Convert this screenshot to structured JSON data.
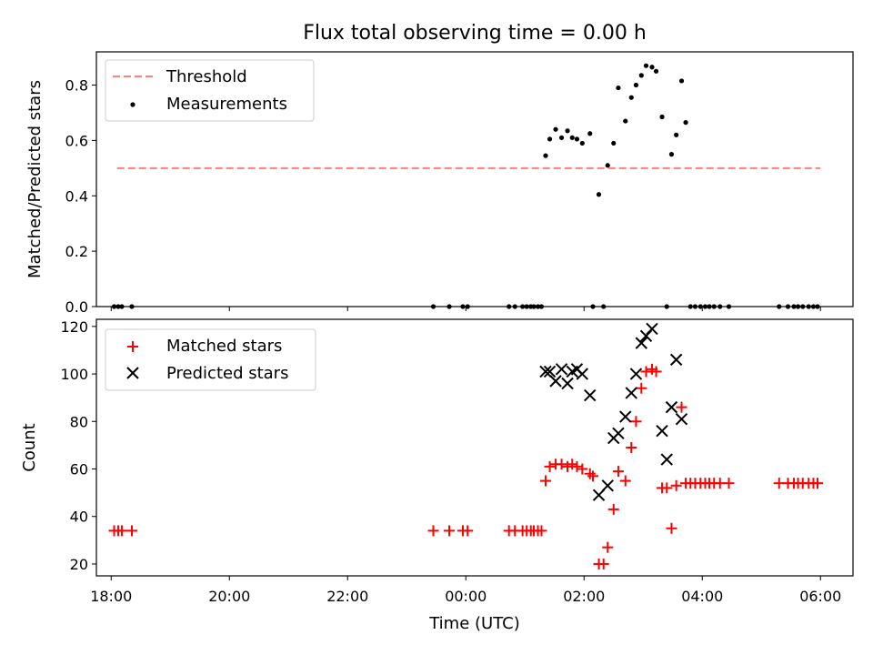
{
  "chart_data": [
    {
      "type": "scatter",
      "title": "Flux total observing time = 0.00 h",
      "xlabel": "",
      "ylabel": "Matched/Predicted stars",
      "xlim_hours": [
        -6.25,
        6.55
      ],
      "ylim": [
        0,
        0.92
      ],
      "yticks": [
        0.0,
        0.2,
        0.4,
        0.6,
        0.8
      ],
      "grid": false,
      "legend_position": "upper-left",
      "series": [
        {
          "name": "Threshold",
          "kind": "line",
          "style": "dashed",
          "color": "#ff7f7f",
          "x_hours": [
            -5.9,
            6.0
          ],
          "values": [
            0.5,
            0.5
          ]
        },
        {
          "name": "Measurements",
          "kind": "scatter",
          "marker": "dot",
          "color": "#000000",
          "x_hours": [
            -5.95,
            -5.88,
            -5.82,
            -5.65,
            -0.55,
            -0.28,
            -0.05,
            0.03,
            0.73,
            0.83,
            0.96,
            1.03,
            1.1,
            1.15,
            1.22,
            1.28,
            1.35,
            1.42,
            1.52,
            1.62,
            1.72,
            1.8,
            1.88,
            1.97,
            2.1,
            2.15,
            2.25,
            2.33,
            2.4,
            2.5,
            2.58,
            2.7,
            2.8,
            2.88,
            2.97,
            3.05,
            3.15,
            3.22,
            3.32,
            3.4,
            3.48,
            3.56,
            3.65,
            3.72,
            3.8,
            3.88,
            3.97,
            4.05,
            4.12,
            4.2,
            4.3,
            4.45,
            5.3,
            5.45,
            5.55,
            5.62,
            5.7,
            5.8,
            5.88,
            5.95
          ],
          "values": [
            0,
            0,
            0,
            0,
            0,
            0,
            0,
            0,
            0,
            0,
            0,
            0,
            0,
            0,
            0,
            0,
            0.545,
            0.605,
            0.64,
            0.61,
            0.635,
            0.61,
            0.605,
            0.59,
            0.625,
            0,
            0.405,
            0,
            0.51,
            0.59,
            0.79,
            0.67,
            0.755,
            0.8,
            0.835,
            0.87,
            0.865,
            0.85,
            0.685,
            0,
            0.55,
            0.62,
            0.815,
            0.665,
            0,
            0,
            0,
            0,
            0,
            0,
            0,
            0,
            0,
            0,
            0,
            0,
            0,
            0,
            0,
            0
          ]
        }
      ]
    },
    {
      "type": "scatter",
      "xlabel": "Time (UTC)",
      "ylabel": "Count",
      "xlim_hours": [
        -6.25,
        6.55
      ],
      "ylim": [
        15,
        123
      ],
      "yticks": [
        20,
        40,
        60,
        80,
        100,
        120
      ],
      "xticks_hours": [
        -6,
        -4,
        -2,
        0,
        2,
        4,
        6
      ],
      "xtick_labels": [
        "18:00",
        "20:00",
        "22:00",
        "00:00",
        "02:00",
        "04:00",
        "06:00"
      ],
      "grid": false,
      "legend_position": "upper-left",
      "series": [
        {
          "name": "Matched stars",
          "marker": "plus",
          "color": "#ff0000",
          "x_hours": [
            -5.95,
            -5.88,
            -5.82,
            -5.65,
            -0.55,
            -0.28,
            -0.05,
            0.03,
            0.73,
            0.83,
            0.96,
            1.03,
            1.1,
            1.15,
            1.22,
            1.28,
            1.35,
            1.42,
            1.52,
            1.62,
            1.72,
            1.8,
            1.88,
            1.97,
            2.1,
            2.15,
            2.25,
            2.33,
            2.4,
            2.5,
            2.58,
            2.7,
            2.8,
            2.88,
            2.97,
            3.05,
            3.15,
            3.22,
            3.32,
            3.4,
            3.48,
            3.56,
            3.65,
            3.72,
            3.8,
            3.88,
            3.97,
            4.05,
            4.12,
            4.2,
            4.3,
            4.45,
            5.3,
            5.45,
            5.55,
            5.62,
            5.7,
            5.8,
            5.88,
            5.95
          ],
          "values": [
            34,
            34,
            34,
            34,
            34,
            34,
            34,
            34,
            34,
            34,
            34,
            34,
            34,
            34,
            34,
            34,
            55,
            61,
            62,
            62,
            61,
            62,
            61,
            60,
            58,
            57,
            20,
            20,
            27,
            43,
            59,
            55,
            69,
            80,
            94,
            101,
            102,
            101,
            52,
            52,
            35,
            53,
            86,
            54,
            54,
            54,
            54,
            54,
            54,
            54,
            54,
            54,
            54,
            54,
            54,
            54,
            54,
            54,
            54,
            54
          ]
        },
        {
          "name": "Predicted stars",
          "marker": "x",
          "color": "#000000",
          "x_hours": [
            1.35,
            1.42,
            1.52,
            1.62,
            1.72,
            1.8,
            1.88,
            1.97,
            2.1,
            2.25,
            2.4,
            2.5,
            2.58,
            2.7,
            2.8,
            2.88,
            2.97,
            3.05,
            3.15,
            3.32,
            3.4,
            3.48,
            3.56,
            3.65
          ],
          "values": [
            101,
            101,
            97,
            102,
            96,
            101,
            102,
            100,
            91,
            49,
            53,
            73,
            75,
            82,
            92,
            100,
            113,
            116,
            119,
            76,
            64,
            86,
            106,
            81
          ]
        }
      ]
    }
  ]
}
